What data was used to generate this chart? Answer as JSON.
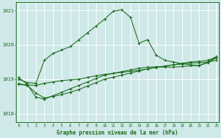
{
  "title": "Graphe pression niveau de la mer (hPa)",
  "xlabel_hours": [
    0,
    1,
    2,
    3,
    4,
    5,
    6,
    7,
    8,
    9,
    10,
    11,
    12,
    13,
    14,
    15,
    16,
    17,
    18,
    19,
    20,
    21,
    22,
    23
  ],
  "ylim": [
    1017.75,
    1021.25
  ],
  "yticks": [
    1018,
    1019,
    1020,
    1021
  ],
  "xlim": [
    -0.3,
    23.3
  ],
  "background_color": "#cfe8e8",
  "grid_color": "#ffffff",
  "line_color": "#1a6b1a",
  "series": {
    "main": [
      1019.0,
      1018.9,
      1018.88,
      1019.55,
      1019.75,
      1019.85,
      1019.95,
      1020.15,
      1020.35,
      1020.55,
      1020.75,
      1020.98,
      1021.02,
      1020.8,
      1020.05,
      1020.15,
      1019.7,
      1019.55,
      1019.5,
      1019.45,
      1019.42,
      1019.4,
      1019.5,
      1019.65
    ],
    "line2": [
      1018.87,
      1018.83,
      1018.82,
      1018.88,
      1018.92,
      1018.96,
      1018.98,
      1019.0,
      1019.05,
      1019.1,
      1019.14,
      1019.17,
      1019.2,
      1019.23,
      1019.26,
      1019.3,
      1019.34,
      1019.38,
      1019.42,
      1019.46,
      1019.5,
      1019.52,
      1019.55,
      1019.65
    ],
    "line3": [
      1018.85,
      1018.82,
      1018.6,
      1018.45,
      1018.5,
      1018.55,
      1018.62,
      1018.7,
      1018.8,
      1018.9,
      1019.0,
      1019.06,
      1019.12,
      1019.18,
      1019.24,
      1019.3,
      1019.35,
      1019.38,
      1019.42,
      1019.44,
      1019.47,
      1019.48,
      1019.5,
      1019.55
    ],
    "line4": [
      1019.05,
      1018.85,
      1018.48,
      1018.42,
      1018.52,
      1018.62,
      1018.72,
      1018.82,
      1018.92,
      1019.02,
      1019.12,
      1019.17,
      1019.22,
      1019.27,
      1019.32,
      1019.35,
      1019.36,
      1019.35,
      1019.35,
      1019.37,
      1019.39,
      1019.4,
      1019.48,
      1019.62
    ]
  }
}
